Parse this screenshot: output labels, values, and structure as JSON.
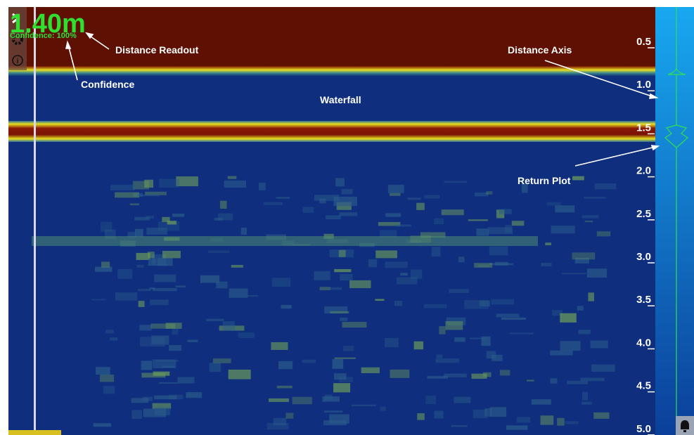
{
  "readout": {
    "distance": "1.40m",
    "confidence": "Confidence: 100%"
  },
  "annotations": {
    "distance_readout": "Distance Readout",
    "confidence": "Confidence",
    "waterfall": "Waterfall",
    "distance_axis": "Distance Axis",
    "return_plot": "Return Plot"
  },
  "distance_axis": {
    "ticks": [
      "0.5",
      "1.0",
      "1.5",
      "2.0",
      "2.5",
      "3.0",
      "3.5",
      "4.0",
      "4.5",
      "5.0"
    ]
  }
}
